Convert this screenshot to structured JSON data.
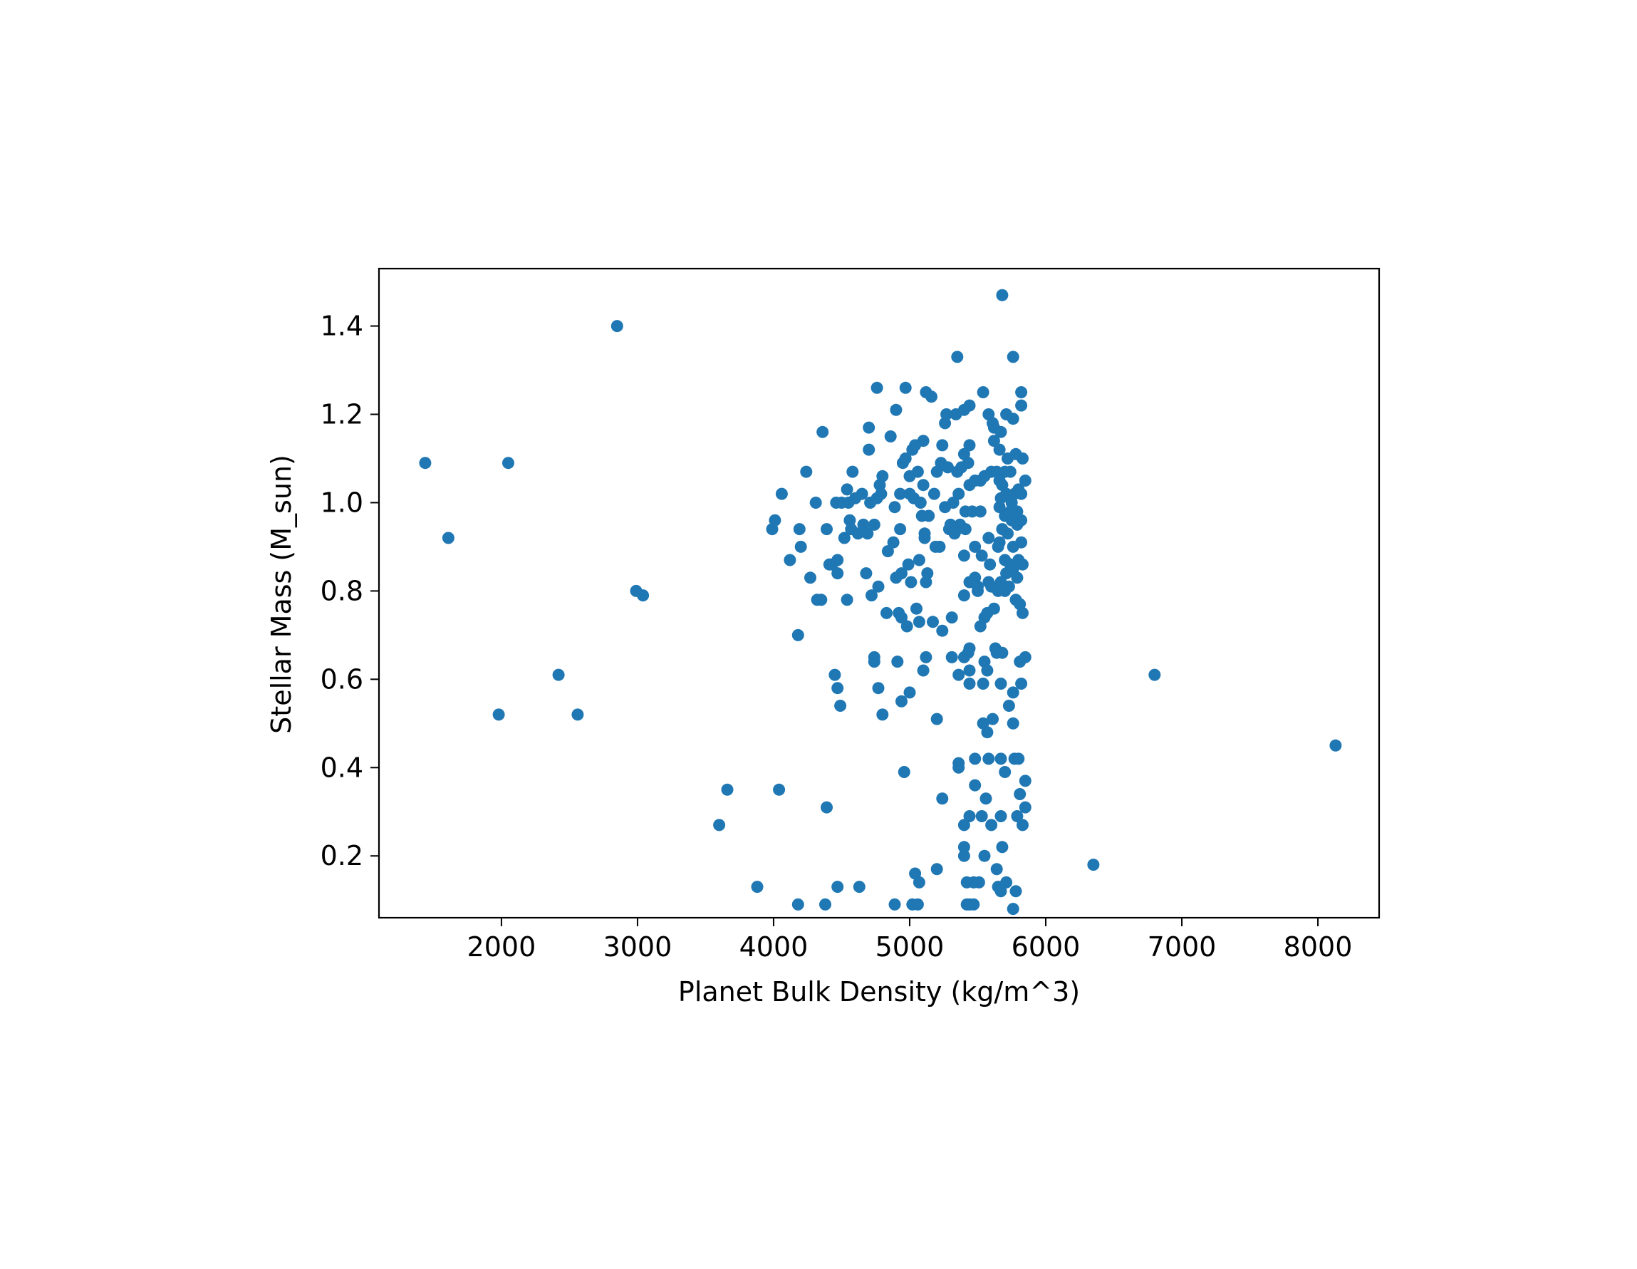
{
  "chart_data": {
    "type": "scatter",
    "title": "",
    "xlabel": "Planet Bulk Density (kg/m^3)",
    "ylabel": "Stellar Mass (M_sun)",
    "xlim": [
      1100,
      8450
    ],
    "ylim": [
      0.06,
      1.53
    ],
    "xticks": [
      2000,
      3000,
      4000,
      5000,
      6000,
      7000,
      8000
    ],
    "xtick_labels": [
      "2000",
      "3000",
      "4000",
      "5000",
      "6000",
      "7000",
      "8000"
    ],
    "yticks": [
      0.2,
      0.4,
      0.6,
      0.8,
      1.0,
      1.2,
      1.4
    ],
    "ytick_labels": [
      "0.2",
      "0.4",
      "0.6",
      "0.8",
      "1.0",
      "1.2",
      "1.4"
    ],
    "grid": false,
    "marker_color": "#1f77b4",
    "series": [
      {
        "points": [
          [
            1440,
            1.09
          ],
          [
            1610,
            0.92
          ],
          [
            1980,
            0.52
          ],
          [
            2050,
            1.09
          ],
          [
            2420,
            0.61
          ],
          [
            2560,
            0.52
          ],
          [
            2850,
            1.4
          ],
          [
            2990,
            0.8
          ],
          [
            3040,
            0.79
          ],
          [
            3600,
            0.27
          ],
          [
            3660,
            0.35
          ],
          [
            3880,
            0.13
          ],
          [
            3990,
            0.94
          ],
          [
            4010,
            0.96
          ],
          [
            4040,
            0.35
          ],
          [
            4060,
            1.02
          ],
          [
            4120,
            0.87
          ],
          [
            4180,
            0.7
          ],
          [
            4180,
            0.09
          ],
          [
            4190,
            0.94
          ],
          [
            4200,
            0.9
          ],
          [
            4240,
            1.07
          ],
          [
            4270,
            0.83
          ],
          [
            4310,
            1.0
          ],
          [
            4320,
            0.78
          ],
          [
            4350,
            0.78
          ],
          [
            4360,
            1.16
          ],
          [
            4380,
            0.09
          ],
          [
            4390,
            0.31
          ],
          [
            4390,
            0.94
          ],
          [
            4410,
            0.86
          ],
          [
            4430,
            0.86
          ],
          [
            4450,
            0.61
          ],
          [
            4460,
            1.0
          ],
          [
            4470,
            0.87
          ],
          [
            4470,
            0.84
          ],
          [
            4470,
            0.58
          ],
          [
            4470,
            0.13
          ],
          [
            4490,
            0.54
          ],
          [
            4500,
            1.0
          ],
          [
            4520,
            0.92
          ],
          [
            4540,
            0.78
          ],
          [
            4540,
            1.03
          ],
          [
            4550,
            1.0
          ],
          [
            4560,
            0.96
          ],
          [
            4570,
            0.94
          ],
          [
            4580,
            1.07
          ],
          [
            4600,
            1.01
          ],
          [
            4620,
            0.93
          ],
          [
            4630,
            0.13
          ],
          [
            4650,
            1.02
          ],
          [
            4660,
            0.95
          ],
          [
            4680,
            0.84
          ],
          [
            4690,
            0.93
          ],
          [
            4700,
            1.17
          ],
          [
            4700,
            1.12
          ],
          [
            4710,
            1.0
          ],
          [
            4720,
            0.79
          ],
          [
            4740,
            0.95
          ],
          [
            4740,
            0.65
          ],
          [
            4740,
            0.64
          ],
          [
            4760,
            1.26
          ],
          [
            4760,
            1.01
          ],
          [
            4770,
            0.81
          ],
          [
            4770,
            0.58
          ],
          [
            4780,
            1.04
          ],
          [
            4790,
            1.02
          ],
          [
            4800,
            1.06
          ],
          [
            4800,
            0.52
          ],
          [
            4830,
            0.75
          ],
          [
            4840,
            0.89
          ],
          [
            4860,
            1.15
          ],
          [
            4880,
            0.91
          ],
          [
            4890,
            0.99
          ],
          [
            4890,
            0.09
          ],
          [
            4900,
            1.21
          ],
          [
            4900,
            0.83
          ],
          [
            4910,
            0.64
          ],
          [
            4920,
            0.75
          ],
          [
            4930,
            1.02
          ],
          [
            4930,
            0.94
          ],
          [
            4940,
            0.84
          ],
          [
            4940,
            0.74
          ],
          [
            4940,
            0.55
          ],
          [
            4950,
            1.09
          ],
          [
            4960,
            0.39
          ],
          [
            4970,
            1.26
          ],
          [
            4970,
            1.1
          ],
          [
            4980,
            0.72
          ],
          [
            4990,
            0.86
          ],
          [
            5000,
            1.06
          ],
          [
            5000,
            1.02
          ],
          [
            5000,
            0.57
          ],
          [
            5010,
            0.82
          ],
          [
            5020,
            1.12
          ],
          [
            5020,
            0.09
          ],
          [
            5030,
            1.01
          ],
          [
            5040,
            1.13
          ],
          [
            5040,
            0.16
          ],
          [
            5050,
            0.76
          ],
          [
            5060,
            1.07
          ],
          [
            5060,
            0.09
          ],
          [
            5070,
            0.87
          ],
          [
            5070,
            0.73
          ],
          [
            5070,
            0.14
          ],
          [
            5080,
            1.0
          ],
          [
            5090,
            0.97
          ],
          [
            5100,
            1.14
          ],
          [
            5100,
            1.04
          ],
          [
            5100,
            0.62
          ],
          [
            5110,
            0.92
          ],
          [
            5110,
            0.93
          ],
          [
            5120,
            1.25
          ],
          [
            5120,
            0.82
          ],
          [
            5120,
            0.65
          ],
          [
            5130,
            0.84
          ],
          [
            5140,
            0.97
          ],
          [
            5160,
            1.24
          ],
          [
            5170,
            0.73
          ],
          [
            5180,
            1.02
          ],
          [
            5190,
            0.9
          ],
          [
            5200,
            1.07
          ],
          [
            5200,
            0.51
          ],
          [
            5200,
            0.17
          ],
          [
            5220,
            0.9
          ],
          [
            5230,
            1.09
          ],
          [
            5240,
            1.13
          ],
          [
            5240,
            0.71
          ],
          [
            5240,
            0.33
          ],
          [
            5260,
            1.18
          ],
          [
            5260,
            0.99
          ],
          [
            5270,
            1.2
          ],
          [
            5280,
            1.08
          ],
          [
            5290,
            0.94
          ],
          [
            5300,
            0.95
          ],
          [
            5310,
            0.65
          ],
          [
            5310,
            0.74
          ],
          [
            5320,
            1.0
          ],
          [
            5330,
            0.93
          ],
          [
            5340,
            1.2
          ],
          [
            5350,
            1.33
          ],
          [
            5350,
            1.07
          ],
          [
            5350,
            0.94
          ],
          [
            5360,
            1.02
          ],
          [
            5360,
            0.61
          ],
          [
            5360,
            0.41
          ],
          [
            5360,
            0.4
          ],
          [
            5370,
            0.95
          ],
          [
            5380,
            1.08
          ],
          [
            5400,
            1.21
          ],
          [
            5400,
            1.11
          ],
          [
            5400,
            0.88
          ],
          [
            5400,
            0.79
          ],
          [
            5400,
            0.65
          ],
          [
            5400,
            0.27
          ],
          [
            5400,
            0.22
          ],
          [
            5400,
            0.2
          ],
          [
            5410,
            0.98
          ],
          [
            5410,
            0.94
          ],
          [
            5420,
            0.14
          ],
          [
            5420,
            0.09
          ],
          [
            5430,
            1.09
          ],
          [
            5430,
            0.66
          ],
          [
            5440,
            1.22
          ],
          [
            5440,
            1.13
          ],
          [
            5440,
            1.04
          ],
          [
            5440,
            0.82
          ],
          [
            5440,
            0.67
          ],
          [
            5440,
            0.62
          ],
          [
            5440,
            0.59
          ],
          [
            5440,
            0.29
          ],
          [
            5440,
            0.09
          ],
          [
            5460,
            0.98
          ],
          [
            5470,
            0.14
          ],
          [
            5470,
            0.09
          ],
          [
            5480,
            1.05
          ],
          [
            5480,
            0.9
          ],
          [
            5480,
            0.83
          ],
          [
            5480,
            0.42
          ],
          [
            5480,
            0.36
          ],
          [
            5500,
            0.81
          ],
          [
            5500,
            0.8
          ],
          [
            5510,
            0.14
          ],
          [
            5520,
            1.05
          ],
          [
            5520,
            0.98
          ],
          [
            5520,
            0.72
          ],
          [
            5530,
            0.88
          ],
          [
            5530,
            0.29
          ],
          [
            5540,
            1.25
          ],
          [
            5540,
            0.59
          ],
          [
            5540,
            0.5
          ],
          [
            5550,
            1.06
          ],
          [
            5550,
            0.74
          ],
          [
            5550,
            0.64
          ],
          [
            5550,
            0.2
          ],
          [
            5560,
            0.33
          ],
          [
            5570,
            0.48
          ],
          [
            5570,
            0.75
          ],
          [
            5570,
            0.62
          ],
          [
            5580,
            1.2
          ],
          [
            5580,
            0.92
          ],
          [
            5580,
            0.82
          ],
          [
            5580,
            0.42
          ],
          [
            5590,
            0.86
          ],
          [
            5600,
            1.07
          ],
          [
            5600,
            0.81
          ],
          [
            5600,
            0.27
          ],
          [
            5610,
            1.18
          ],
          [
            5610,
            0.51
          ],
          [
            5620,
            1.17
          ],
          [
            5620,
            1.14
          ],
          [
            5620,
            0.76
          ],
          [
            5630,
            0.67
          ],
          [
            5640,
            1.07
          ],
          [
            5640,
            0.66
          ],
          [
            5640,
            0.17
          ],
          [
            5650,
            0.9
          ],
          [
            5650,
            0.8
          ],
          [
            5650,
            0.13
          ],
          [
            5660,
            1.12
          ],
          [
            5660,
            1.05
          ],
          [
            5660,
            0.99
          ],
          [
            5660,
            0.91
          ],
          [
            5670,
            1.16
          ],
          [
            5670,
            1.01
          ],
          [
            5670,
            0.82
          ],
          [
            5670,
            0.59
          ],
          [
            5670,
            0.42
          ],
          [
            5670,
            0.29
          ],
          [
            5670,
            0.12
          ],
          [
            5680,
            1.47
          ],
          [
            5680,
            1.04
          ],
          [
            5680,
            0.94
          ],
          [
            5680,
            0.66
          ],
          [
            5680,
            0.22
          ],
          [
            5700,
            1.07
          ],
          [
            5700,
            0.97
          ],
          [
            5700,
            0.87
          ],
          [
            5700,
            0.8
          ],
          [
            5700,
            0.39
          ],
          [
            5710,
            1.2
          ],
          [
            5710,
            1.02
          ],
          [
            5710,
            0.84
          ],
          [
            5710,
            0.14
          ],
          [
            5720,
            1.1
          ],
          [
            5720,
            0.93
          ],
          [
            5730,
            0.81
          ],
          [
            5730,
            0.54
          ],
          [
            5740,
            1.07
          ],
          [
            5740,
            0.98
          ],
          [
            5740,
            0.86
          ],
          [
            5750,
            1.0
          ],
          [
            5750,
            0.96
          ],
          [
            5760,
            1.33
          ],
          [
            5760,
            1.19
          ],
          [
            5760,
            0.9
          ],
          [
            5760,
            0.85
          ],
          [
            5760,
            0.57
          ],
          [
            5760,
            0.5
          ],
          [
            5760,
            0.08
          ],
          [
            5770,
            1.02
          ],
          [
            5770,
            0.42
          ],
          [
            5780,
            1.11
          ],
          [
            5780,
            0.78
          ],
          [
            5780,
            0.12
          ],
          [
            5790,
            0.98
          ],
          [
            5790,
            0.95
          ],
          [
            5790,
            0.83
          ],
          [
            5790,
            0.29
          ],
          [
            5800,
            1.03
          ],
          [
            5800,
            0.87
          ],
          [
            5800,
            0.42
          ],
          [
            5810,
            0.77
          ],
          [
            5810,
            0.64
          ],
          [
            5810,
            0.34
          ],
          [
            5820,
            1.25
          ],
          [
            5820,
            1.22
          ],
          [
            5820,
            1.02
          ],
          [
            5820,
            0.96
          ],
          [
            5820,
            0.91
          ],
          [
            5820,
            0.59
          ],
          [
            5830,
            1.1
          ],
          [
            5830,
            0.86
          ],
          [
            5830,
            0.75
          ],
          [
            5830,
            0.27
          ],
          [
            5850,
            1.05
          ],
          [
            5850,
            0.65
          ],
          [
            5850,
            0.37
          ],
          [
            5850,
            0.31
          ],
          [
            6350,
            0.18
          ],
          [
            6800,
            0.61
          ],
          [
            8130,
            0.45
          ]
        ]
      }
    ]
  }
}
